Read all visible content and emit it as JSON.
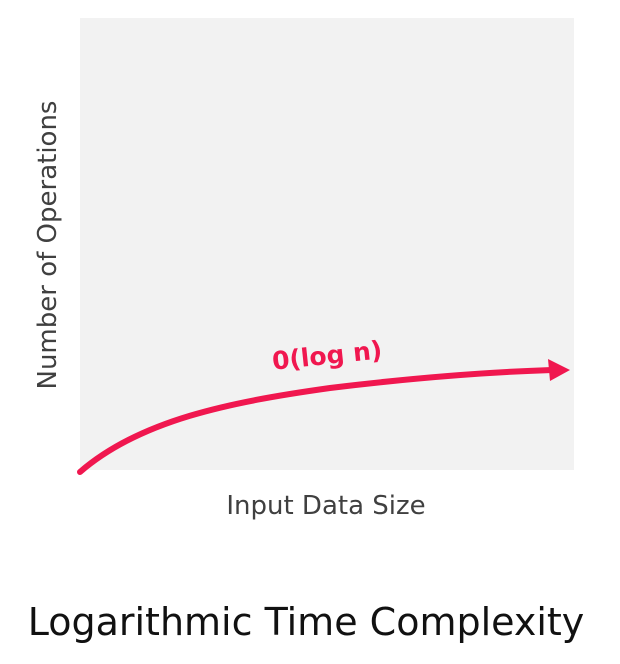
{
  "diagram": {
    "y_axis_label": "Number of Operations",
    "x_axis_label": "Input Data Size",
    "curve_label": "0(log n)",
    "caption": "Logarithmic Time Complexity",
    "curve_color": "#f0174f",
    "plot_background": "#f2f2f2",
    "axis_label_color": "#404040",
    "caption_color": "#111111"
  }
}
